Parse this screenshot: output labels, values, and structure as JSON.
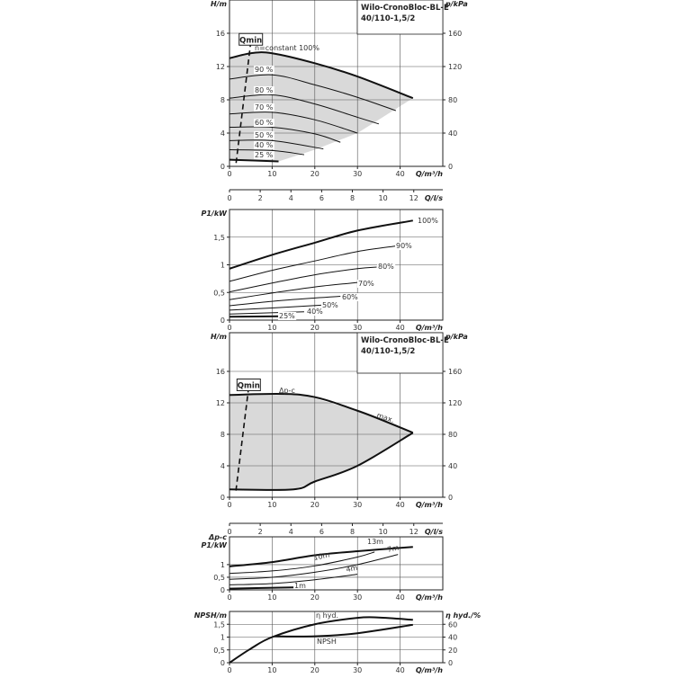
{
  "colors": {
    "line": "#111111",
    "grid": "#555555",
    "fill": "#d9d9d9"
  },
  "chart_data": [
    {
      "type": "line",
      "title": [
        "Wilo-CronoBloc-BL-E",
        "40/110-1,5/2"
      ],
      "xlabel": "Q/m³/h",
      "ylabel": "H/m",
      "y2label": "p/kPa",
      "x2label": "Q/l/s",
      "xlim": [
        0,
        50
      ],
      "ylim": [
        0,
        20
      ],
      "y2lim": [
        0,
        200
      ],
      "x2lim": [
        0,
        13.89
      ],
      "xticks": [
        0,
        10,
        20,
        30,
        40
      ],
      "yticks": [
        0,
        4,
        8,
        12,
        16
      ],
      "y2ticks": [
        0,
        40,
        80,
        120,
        160
      ],
      "x2ticks": [
        0,
        2,
        4,
        6,
        8,
        10,
        12
      ],
      "grid": true,
      "qmin_label": "Qmin",
      "qmin_line": [
        [
          5,
          15
        ],
        [
          1.5,
          0.2
        ]
      ],
      "shaded_region": [
        [
          0,
          13
        ],
        [
          5,
          13.6
        ],
        [
          10,
          13.6
        ],
        [
          20,
          12.4
        ],
        [
          30,
          10.8
        ],
        [
          43,
          8.2
        ],
        [
          30,
          4
        ],
        [
          20,
          2
        ],
        [
          11.5,
          0.6
        ],
        [
          0,
          0.8
        ]
      ],
      "series": [
        {
          "name": "n=constant 100%",
          "bold": true,
          "points": [
            [
              0,
              13
            ],
            [
              5,
              13.6
            ],
            [
              10,
              13.6
            ],
            [
              20,
              12.4
            ],
            [
              30,
              10.8
            ],
            [
              43,
              8.2
            ]
          ]
        },
        {
          "name": "90 %",
          "points": [
            [
              0,
              10.5
            ],
            [
              10,
              11
            ],
            [
              20,
              9.8
            ],
            [
              30,
              8.3
            ],
            [
              39,
              6.7
            ]
          ]
        },
        {
          "name": "80 %",
          "points": [
            [
              0,
              8.2
            ],
            [
              10,
              8.6
            ],
            [
              20,
              7.5
            ],
            [
              30,
              5.9
            ],
            [
              35,
              5.1
            ]
          ]
        },
        {
          "name": "70 %",
          "points": [
            [
              0,
              6.3
            ],
            [
              10,
              6.5
            ],
            [
              20,
              5.6
            ],
            [
              30,
              4
            ]
          ]
        },
        {
          "name": "60 %",
          "points": [
            [
              0,
              4.7
            ],
            [
              10,
              4.7
            ],
            [
              20,
              3.9
            ],
            [
              26,
              2.9
            ]
          ]
        },
        {
          "name": "50 %",
          "points": [
            [
              0,
              3.1
            ],
            [
              10,
              3.1
            ],
            [
              22,
              2.1
            ]
          ]
        },
        {
          "name": "40 %",
          "points": [
            [
              0,
              2
            ],
            [
              10,
              1.9
            ],
            [
              17.5,
              1.4
            ]
          ]
        },
        {
          "name": "25 %",
          "bold": true,
          "points": [
            [
              0,
              0.8
            ],
            [
              11.5,
              0.6
            ]
          ]
        }
      ]
    },
    {
      "type": "line",
      "xlabel": "Q/m³/h",
      "ylabel": "P1/kW",
      "xlim": [
        0,
        50
      ],
      "ylim": [
        0,
        2
      ],
      "xticks": [
        0,
        10,
        20,
        30,
        40
      ],
      "yticks": [
        0,
        0.5,
        1,
        1.5
      ],
      "ytick_labels": [
        "0",
        "0,5",
        "1",
        "1,5"
      ],
      "grid": true,
      "series": [
        {
          "name": "100%",
          "bold": true,
          "points": [
            [
              0,
              0.93
            ],
            [
              10,
              1.18
            ],
            [
              20,
              1.4
            ],
            [
              30,
              1.62
            ],
            [
              43,
              1.8
            ]
          ]
        },
        {
          "name": "90%",
          "points": [
            [
              0,
              0.7
            ],
            [
              10,
              0.9
            ],
            [
              20,
              1.07
            ],
            [
              30,
              1.24
            ],
            [
              39,
              1.34
            ]
          ]
        },
        {
          "name": "80%",
          "points": [
            [
              0,
              0.51
            ],
            [
              10,
              0.67
            ],
            [
              20,
              0.82
            ],
            [
              30,
              0.93
            ],
            [
              34.5,
              0.96
            ]
          ]
        },
        {
          "name": "70%",
          "points": [
            [
              0,
              0.37
            ],
            [
              10,
              0.49
            ],
            [
              20,
              0.6
            ],
            [
              30,
              0.68
            ]
          ]
        },
        {
          "name": "60%",
          "points": [
            [
              0,
              0.26
            ],
            [
              10,
              0.34
            ],
            [
              20,
              0.4
            ],
            [
              26,
              0.43
            ]
          ]
        },
        {
          "name": "50%",
          "points": [
            [
              0,
              0.18
            ],
            [
              10,
              0.22
            ],
            [
              21.5,
              0.27
            ]
          ]
        },
        {
          "name": "40%",
          "points": [
            [
              0,
              0.11
            ],
            [
              17.5,
              0.15
            ]
          ]
        },
        {
          "name": "25%",
          "bold": true,
          "points": [
            [
              0,
              0.06
            ],
            [
              11.5,
              0.07
            ]
          ]
        }
      ]
    },
    {
      "type": "line",
      "title": [
        "Wilo-CronoBloc-BL-E",
        "40/110-1,5/2"
      ],
      "xlabel": "Q/m³/h",
      "ylabel": "H/m",
      "y2label": "p/kPa",
      "x2label": "Q/l/s",
      "xlim": [
        0,
        50
      ],
      "ylim": [
        0,
        20
      ],
      "y2lim": [
        0,
        200
      ],
      "x2lim": [
        0,
        13.89
      ],
      "xticks": [
        0,
        10,
        20,
        30,
        40
      ],
      "yticks": [
        0,
        4,
        8,
        12,
        16
      ],
      "y2ticks": [
        0,
        40,
        80,
        120,
        160
      ],
      "x2ticks": [
        0,
        2,
        4,
        6,
        8,
        10,
        12
      ],
      "grid": true,
      "qmin_label": "Qmin",
      "qmin_line": [
        [
          4.5,
          14
        ],
        [
          1.5,
          0.8
        ]
      ],
      "shaded_region": [
        [
          0,
          13
        ],
        [
          17,
          13
        ],
        [
          30,
          11
        ],
        [
          43,
          8.2
        ],
        [
          30,
          4
        ],
        [
          20,
          2
        ],
        [
          15,
          1
        ],
        [
          0,
          1
        ]
      ],
      "series": [
        {
          "name": "Δp-c",
          "bold": true,
          "points": [
            [
              0,
              13
            ],
            [
              17,
              13
            ],
            [
              30,
              11
            ],
            [
              43,
              8.2
            ]
          ]
        },
        {
          "name": "max.",
          "bold": true,
          "points": [
            [
              43,
              8.2
            ],
            [
              30,
              4
            ],
            [
              20,
              2
            ],
            [
              15,
              1
            ],
            [
              0,
              1
            ]
          ]
        }
      ]
    },
    {
      "type": "line",
      "xlabel": "Q/m³/h",
      "ylabel": [
        "Δp-c",
        "P1/kW"
      ],
      "xlim": [
        0,
        50
      ],
      "ylim": [
        0,
        2.1
      ],
      "xticks": [
        0,
        10,
        20,
        30,
        40
      ],
      "yticks": [
        0,
        0.5,
        1
      ],
      "ytick_labels": [
        "0",
        "0,5",
        "1"
      ],
      "grid": true,
      "series": [
        {
          "name": "13m",
          "bold": true,
          "points": [
            [
              0,
              0.93
            ],
            [
              10,
              1.1
            ],
            [
              20,
              1.37
            ],
            [
              30,
              1.53
            ],
            [
              43,
              1.7
            ]
          ]
        },
        {
          "name": "10m",
          "points": [
            [
              0,
              0.65
            ],
            [
              10,
              0.75
            ],
            [
              20,
              0.95
            ],
            [
              30,
              1.3
            ],
            [
              34,
              1.5
            ]
          ]
        },
        {
          "name": "7m",
          "points": [
            [
              0,
              0.42
            ],
            [
              10,
              0.5
            ],
            [
              20,
              0.7
            ],
            [
              30,
              1.0
            ],
            [
              39.5,
              1.4
            ]
          ]
        },
        {
          "name": "4m",
          "points": [
            [
              0,
              0.2
            ],
            [
              10,
              0.25
            ],
            [
              20,
              0.4
            ],
            [
              30,
              0.62
            ]
          ]
        },
        {
          "name": "1m",
          "bold": true,
          "points": [
            [
              0,
              0.05
            ],
            [
              15,
              0.1
            ]
          ]
        }
      ]
    },
    {
      "type": "line",
      "xlabel": "Q/m³/h",
      "ylabel": "NPSH/m",
      "y2label": "η hyd./%",
      "xlim": [
        0,
        50
      ],
      "ylim": [
        0,
        2
      ],
      "y2lim": [
        0,
        80
      ],
      "xticks": [
        0,
        10,
        20,
        30,
        40
      ],
      "yticks": [
        0,
        0.5,
        1,
        1.5
      ],
      "ytick_labels": [
        "0",
        "0,5",
        "1",
        "1,5"
      ],
      "y2ticks": [
        0,
        20,
        40,
        60
      ],
      "grid": true,
      "series": [
        {
          "name": "η hyd.",
          "axis": "right",
          "bold": true,
          "points": [
            [
              0,
              0
            ],
            [
              5,
              22
            ],
            [
              10,
              40
            ],
            [
              20,
              60
            ],
            [
              30,
              70
            ],
            [
              35,
              70.5
            ],
            [
              43,
              67
            ]
          ]
        },
        {
          "name": "NPSH",
          "bold": true,
          "points": [
            [
              10.5,
              1.03
            ],
            [
              20,
              1.03
            ],
            [
              30,
              1.15
            ],
            [
              43,
              1.48
            ]
          ]
        }
      ]
    }
  ]
}
